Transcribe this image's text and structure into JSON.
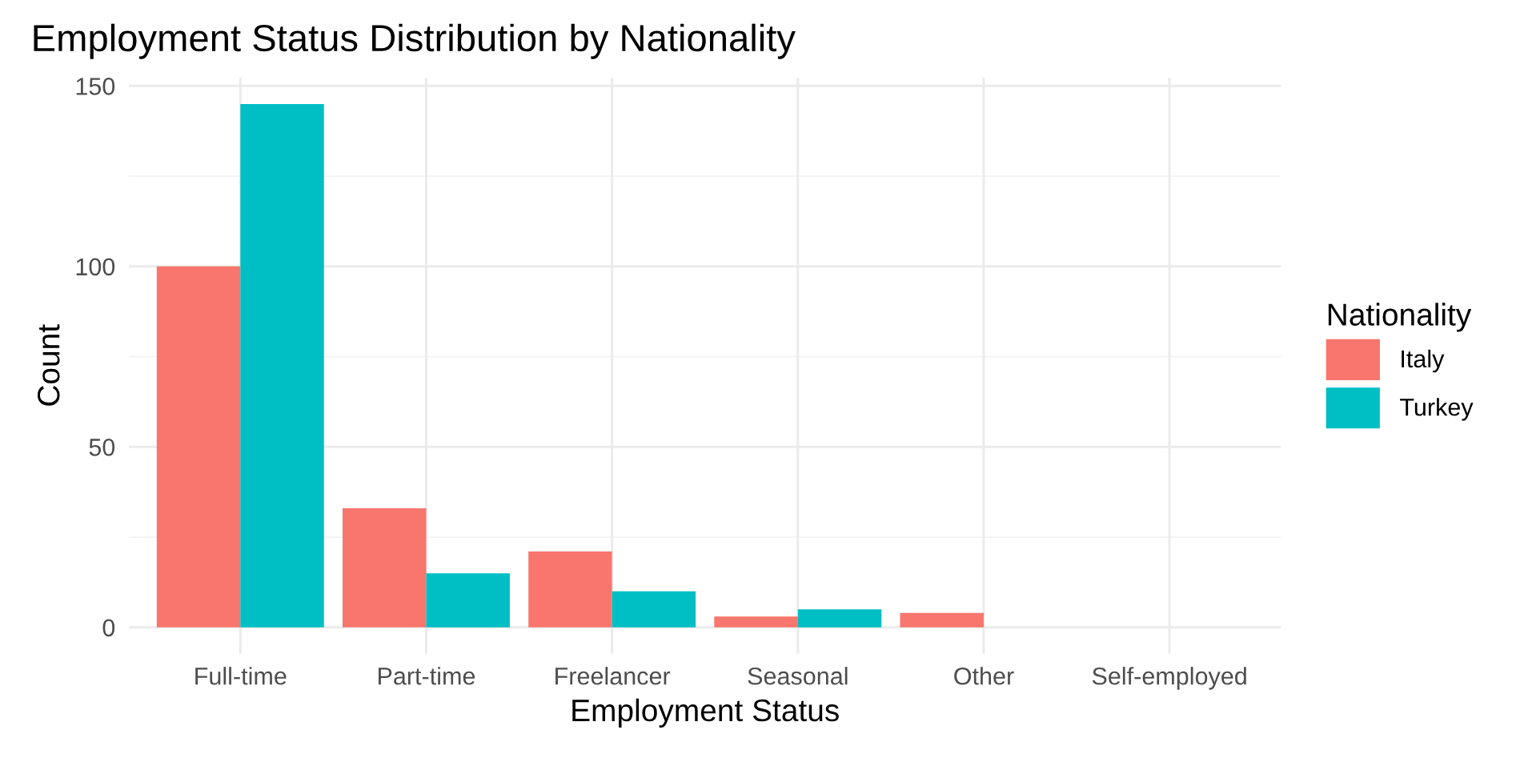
{
  "chart_data": {
    "type": "bar",
    "title": "Employment Status Distribution by Nationality",
    "xlabel": "Employment Status",
    "ylabel": "Count",
    "legend_title": "Nationality",
    "categories": [
      "Full-time",
      "Part-time",
      "Freelancer",
      "Seasonal",
      "Other",
      "Self-employed"
    ],
    "series": [
      {
        "name": "Italy",
        "color": "#f8766d",
        "values": [
          100,
          33,
          21,
          3,
          4,
          0
        ]
      },
      {
        "name": "Turkey",
        "color": "#00bfc4",
        "values": [
          145,
          15,
          10,
          5,
          0,
          0
        ]
      }
    ],
    "ylim": [
      -7.25,
      152.25
    ],
    "yticks": [
      0,
      50,
      100,
      150
    ],
    "grid": true,
    "legend": "right"
  }
}
